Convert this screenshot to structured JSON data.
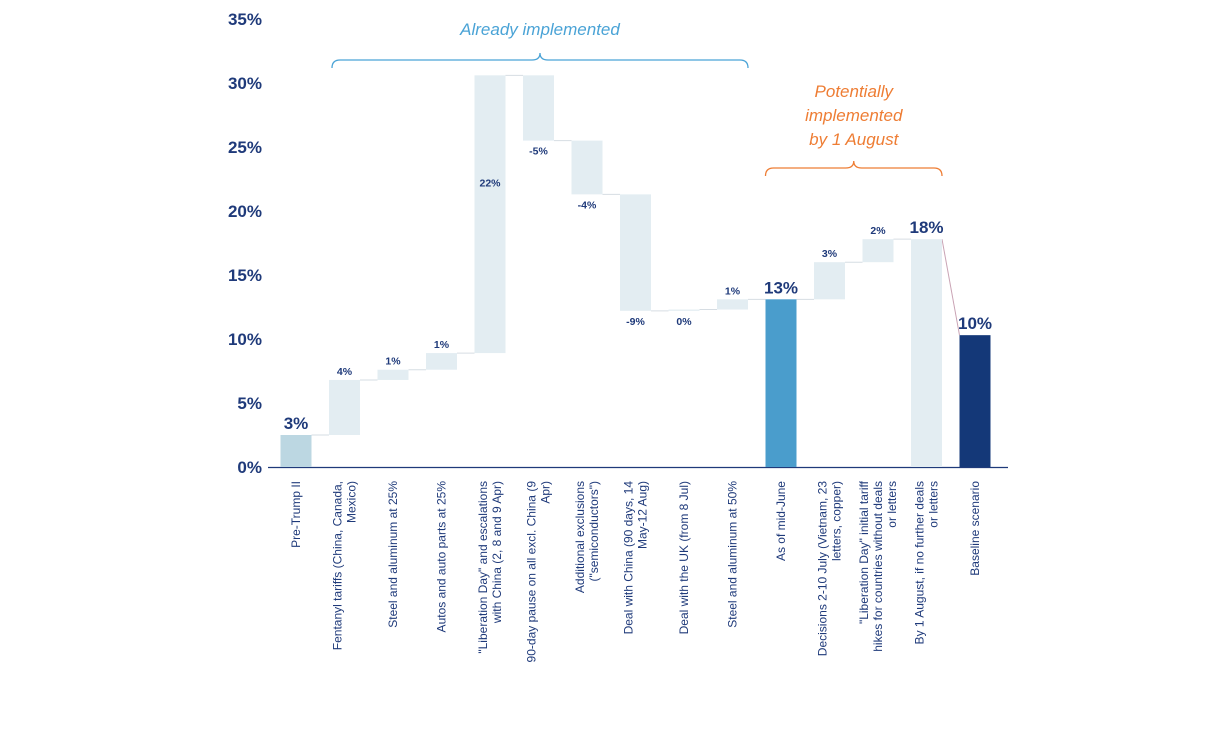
{
  "chart_data": {
    "type": "waterfall",
    "ylim": [
      0,
      35
    ],
    "y_ticks": [
      "0%",
      "5%",
      "10%",
      "15%",
      "20%",
      "25%",
      "30%",
      "35%"
    ],
    "grid": false,
    "categories": [
      "Pre-Trump II",
      "Fentanyl tariffs (China, Canada, Mexico)",
      "Steel and aluminum at 25%",
      "Autos and auto parts at 25%",
      "\"Liberation Day\" and escalations with China (2, 8 and 9 Apr)",
      "90-day pause on all excl. China (9 Apr)",
      "Additional exclusions (\"semiconductors\")",
      "Deal with China (90 days, 14 May-12 Aug)",
      "Deal with the UK (from 8 Jul)",
      "Steel and aluminum at 50%",
      "As of mid-June",
      "Decisions 2-10 July (Vietnam, 23 letters, copper)",
      "\"Liberation Day\" initial tariff hikes for countries without deals or letters",
      "By 1 August, if no further deals or letters",
      "Baseline scenario"
    ],
    "bars": [
      {
        "kind": "total",
        "base": 0,
        "top": 2.5,
        "label": "3%",
        "color": "#bcd7e2"
      },
      {
        "kind": "step",
        "base": 2.5,
        "top": 6.8,
        "label": "4%",
        "color": "#e3edf2"
      },
      {
        "kind": "step",
        "base": 6.8,
        "top": 7.6,
        "label": "1%",
        "color": "#e3edf2"
      },
      {
        "kind": "step",
        "base": 7.6,
        "top": 8.9,
        "label": "1%",
        "color": "#e3edf2"
      },
      {
        "kind": "step",
        "base": 8.9,
        "top": 30.6,
        "label": "22%",
        "color": "#e3edf2"
      },
      {
        "kind": "step",
        "base": 25.5,
        "top": 30.6,
        "label": "-5%",
        "color": "#e3edf2"
      },
      {
        "kind": "step",
        "base": 21.3,
        "top": 25.5,
        "label": "-4%",
        "color": "#e3edf2"
      },
      {
        "kind": "step",
        "base": 12.2,
        "top": 21.3,
        "label": "-9%",
        "color": "#e3edf2"
      },
      {
        "kind": "step",
        "base": 12.2,
        "top": 12.3,
        "label": "0%",
        "color": "#e3edf2"
      },
      {
        "kind": "step",
        "base": 12.3,
        "top": 13.1,
        "label": "1%",
        "color": "#e3edf2"
      },
      {
        "kind": "total",
        "base": 0,
        "top": 13.1,
        "label": "13%",
        "color": "#4a9dcc"
      },
      {
        "kind": "step",
        "base": 13.1,
        "top": 16.0,
        "label": "3%",
        "color": "#e3edf2"
      },
      {
        "kind": "step",
        "base": 16.0,
        "top": 17.8,
        "label": "2%",
        "color": "#e3edf2"
      },
      {
        "kind": "total",
        "base": 0,
        "top": 17.8,
        "label": "18%",
        "color": "#e3edf2"
      },
      {
        "kind": "total",
        "base": 0,
        "top": 10.3,
        "label": "10%",
        "color": "#143878"
      }
    ],
    "annotations": [
      {
        "text": "Already implemented",
        "color": "#4aa3d6",
        "from": 1,
        "to": 9
      },
      {
        "text": "Potentially implemented by 1 August",
        "color": "#ee7d34",
        "from": 10,
        "to": 13
      }
    ]
  }
}
